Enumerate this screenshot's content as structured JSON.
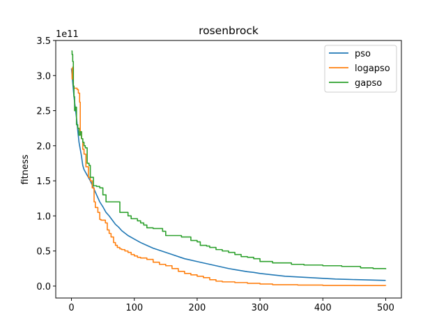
{
  "chart_data": {
    "type": "line",
    "title": "rosenbrock",
    "xlabel": "",
    "ylabel": "fitness",
    "y_offset_label": "1e11",
    "xlim": [
      -25,
      525
    ],
    "ylim": [
      -0.17,
      3.5
    ],
    "xticks": [
      0,
      100,
      200,
      300,
      400,
      500
    ],
    "xtick_labels": [
      "0",
      "100",
      "200",
      "300",
      "400",
      "500"
    ],
    "yticks": [
      0.0,
      0.5,
      1.0,
      1.5,
      2.0,
      2.5,
      3.0,
      3.5
    ],
    "ytick_labels": [
      "0.0",
      "0.5",
      "1.0",
      "1.5",
      "2.0",
      "2.5",
      "3.0",
      "3.5"
    ],
    "grid": false,
    "legend_position": "top-right",
    "series": [
      {
        "name": "pso",
        "color": "#1f77b4",
        "step": false,
        "x": [
          0,
          2,
          4,
          6,
          8,
          10,
          12,
          14,
          16,
          18,
          20,
          25,
          30,
          35,
          40,
          45,
          50,
          55,
          60,
          65,
          70,
          75,
          80,
          90,
          100,
          110,
          120,
          130,
          140,
          150,
          160,
          170,
          180,
          190,
          200,
          210,
          220,
          230,
          240,
          250,
          260,
          270,
          280,
          290,
          300,
          320,
          340,
          360,
          380,
          400,
          420,
          440,
          460,
          480,
          500
        ],
        "y": [
          3.1,
          2.9,
          2.7,
          2.55,
          2.4,
          2.22,
          2.05,
          1.95,
          1.85,
          1.72,
          1.66,
          1.58,
          1.5,
          1.4,
          1.3,
          1.2,
          1.13,
          1.05,
          1.0,
          0.94,
          0.88,
          0.84,
          0.79,
          0.72,
          0.67,
          0.62,
          0.58,
          0.54,
          0.51,
          0.48,
          0.45,
          0.42,
          0.39,
          0.37,
          0.35,
          0.33,
          0.31,
          0.29,
          0.27,
          0.25,
          0.235,
          0.22,
          0.205,
          0.195,
          0.18,
          0.16,
          0.14,
          0.13,
          0.12,
          0.11,
          0.1,
          0.095,
          0.09,
          0.085,
          0.08
        ]
      },
      {
        "name": "logapso",
        "color": "#ff7f0e",
        "step": true,
        "x": [
          0,
          1,
          2,
          3,
          4,
          9,
          11,
          13,
          14,
          16,
          18,
          20,
          23,
          27,
          30,
          33,
          36,
          38,
          42,
          45,
          47,
          50,
          54,
          57,
          60,
          63,
          67,
          70,
          73,
          77,
          80,
          85,
          90,
          95,
          100,
          105,
          110,
          120,
          130,
          140,
          150,
          160,
          170,
          180,
          190,
          200,
          210,
          220,
          230,
          240,
          260,
          280,
          300,
          320,
          360,
          400,
          450,
          500
        ],
        "y": [
          3.1,
          2.95,
          3.12,
          2.85,
          2.82,
          2.8,
          2.75,
          2.62,
          2.2,
          2.1,
          1.95,
          1.88,
          1.7,
          1.55,
          1.5,
          1.4,
          1.2,
          1.12,
          1.05,
          0.95,
          0.94,
          0.94,
          0.9,
          0.8,
          0.75,
          0.7,
          0.62,
          0.58,
          0.55,
          0.53,
          0.52,
          0.5,
          0.48,
          0.45,
          0.43,
          0.41,
          0.4,
          0.38,
          0.34,
          0.31,
          0.29,
          0.25,
          0.21,
          0.18,
          0.16,
          0.14,
          0.12,
          0.09,
          0.07,
          0.06,
          0.05,
          0.04,
          0.03,
          0.02,
          0.015,
          0.01,
          0.008,
          0.005
        ]
      },
      {
        "name": "gapso",
        "color": "#2ca02c",
        "step": true,
        "x": [
          0,
          1,
          2,
          3,
          4,
          5,
          6,
          8,
          10,
          12,
          14,
          16,
          18,
          20,
          22,
          25,
          28,
          30,
          32,
          35,
          40,
          45,
          50,
          55,
          60,
          65,
          70,
          77,
          80,
          90,
          95,
          100,
          105,
          110,
          115,
          120,
          130,
          145,
          150,
          170,
          175,
          185,
          190,
          200,
          205,
          215,
          220,
          230,
          240,
          250,
          260,
          270,
          280,
          290,
          300,
          320,
          350,
          370,
          400,
          430,
          460,
          480,
          500
        ],
        "y": [
          3.35,
          3.3,
          3.2,
          2.85,
          2.7,
          2.5,
          2.55,
          2.3,
          2.25,
          2.15,
          2.2,
          2.1,
          2.05,
          2.0,
          1.97,
          1.75,
          1.72,
          1.55,
          1.55,
          1.43,
          1.42,
          1.4,
          1.3,
          1.2,
          1.2,
          1.2,
          1.2,
          1.05,
          1.05,
          1.0,
          0.96,
          0.96,
          0.93,
          0.9,
          0.87,
          0.83,
          0.82,
          0.78,
          0.72,
          0.72,
          0.7,
          0.7,
          0.65,
          0.63,
          0.58,
          0.57,
          0.55,
          0.52,
          0.5,
          0.48,
          0.45,
          0.42,
          0.41,
          0.39,
          0.35,
          0.33,
          0.31,
          0.3,
          0.29,
          0.28,
          0.26,
          0.25,
          0.24
        ]
      }
    ]
  }
}
